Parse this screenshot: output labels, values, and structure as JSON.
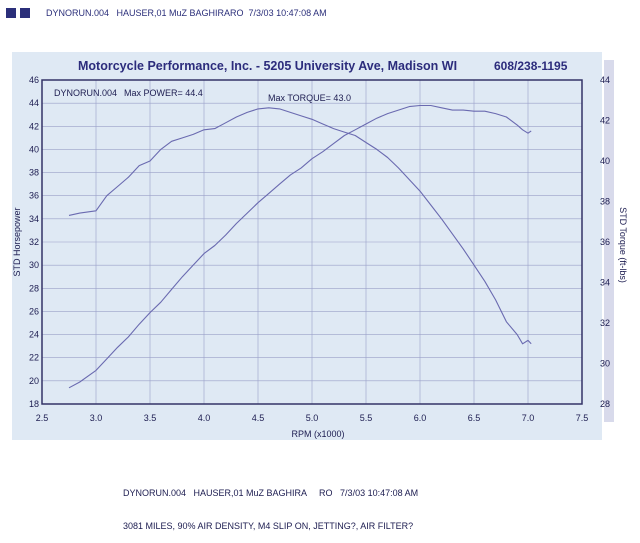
{
  "header": {
    "text": "DYNORUN.004   HAUSER,01 MuZ BAGHIRARO  7/3/03 10:47:08 AM"
  },
  "chart_data": {
    "type": "line",
    "title": "Motorcycle Performance, Inc. - 5205 University Ave, Madison WI",
    "phone": "608/238-1195",
    "xlabel": "RPM (x1000)",
    "ylabel_left": "STD Horsepower",
    "ylabel_right": "STD Torque (ft-lbs)",
    "xlim": [
      2.5,
      7.5
    ],
    "ylim_left": [
      18,
      46
    ],
    "ylim_right": [
      28,
      44
    ],
    "x_ticks": [
      "2.5",
      "3.0",
      "3.5",
      "4.0",
      "4.5",
      "5.0",
      "5.5",
      "6.0",
      "6.5",
      "7.0",
      "7.5"
    ],
    "y_ticks_left": [
      "18",
      "20",
      "22",
      "24",
      "26",
      "28",
      "30",
      "32",
      "34",
      "36",
      "38",
      "40",
      "42",
      "44",
      "46"
    ],
    "y_ticks_right": [
      "28",
      "30",
      "32",
      "34",
      "36",
      "38",
      "40",
      "42",
      "44"
    ],
    "grid": true,
    "annotations": {
      "run_name": "DYNORUN.004",
      "max_power_label": "Max POWER= 44.4",
      "max_torque_label": "Max TORQUE= 43.0"
    },
    "series": [
      {
        "axis": "left",
        "color": "#6a6ab0",
        "x": [
          2.75,
          2.85,
          3.0,
          3.1,
          3.2,
          3.3,
          3.4,
          3.5,
          3.6,
          3.7,
          3.8,
          3.9,
          4.0,
          4.1,
          4.2,
          4.3,
          4.4,
          4.5,
          4.6,
          4.7,
          4.8,
          4.9,
          5.0,
          5.1,
          5.2,
          5.3,
          5.4,
          5.5,
          5.6,
          5.7,
          5.8,
          5.9,
          6.0,
          6.1,
          6.2,
          6.3,
          6.4,
          6.5,
          6.6,
          6.7,
          6.8,
          6.9,
          6.95,
          7.0,
          7.03
        ],
        "y": [
          19.4,
          19.9,
          20.9,
          21.9,
          22.9,
          23.8,
          24.9,
          25.9,
          26.8,
          27.9,
          29.0,
          30.0,
          31.0,
          31.7,
          32.6,
          33.6,
          34.5,
          35.4,
          36.2,
          37.0,
          37.8,
          38.4,
          39.2,
          39.8,
          40.5,
          41.2,
          41.7,
          42.2,
          42.7,
          43.1,
          43.4,
          43.7,
          43.8,
          43.8,
          43.6,
          43.4,
          43.4,
          43.3,
          43.3,
          43.1,
          42.8,
          42.1,
          41.7,
          41.4,
          41.6
        ]
      },
      {
        "axis": "left",
        "color": "#6a6ab0",
        "x": [
          2.75,
          2.85,
          3.0,
          3.1,
          3.2,
          3.3,
          3.4,
          3.5,
          3.6,
          3.7,
          3.8,
          3.9,
          4.0,
          4.1,
          4.2,
          4.3,
          4.4,
          4.5,
          4.6,
          4.7,
          4.8,
          4.9,
          5.0,
          5.1,
          5.2,
          5.3,
          5.4,
          5.5,
          5.6,
          5.7,
          5.8,
          5.9,
          6.0,
          6.1,
          6.2,
          6.3,
          6.4,
          6.5,
          6.6,
          6.7,
          6.8,
          6.9,
          6.95,
          7.0,
          7.03
        ],
        "y": [
          34.3,
          34.5,
          34.7,
          36.0,
          36.8,
          37.6,
          38.6,
          39.0,
          40.0,
          40.7,
          41.0,
          41.3,
          41.7,
          41.8,
          42.3,
          42.8,
          43.2,
          43.5,
          43.6,
          43.5,
          43.2,
          42.9,
          42.6,
          42.2,
          41.8,
          41.5,
          41.2,
          40.6,
          40.0,
          39.3,
          38.4,
          37.4,
          36.4,
          35.2,
          34.0,
          32.7,
          31.4,
          30.0,
          28.6,
          27.0,
          25.1,
          24.0,
          23.2,
          23.5,
          23.2
        ]
      }
    ]
  },
  "footer": {
    "line1": "DYNORUN.004   HAUSER,01 MuZ BAGHIRA     RO   7/3/03 10:47:08 AM",
    "line2": "3081 MILES, 90% AIR DENSITY, M4 SLIP ON, JETTING?, AIR FILTER?"
  }
}
